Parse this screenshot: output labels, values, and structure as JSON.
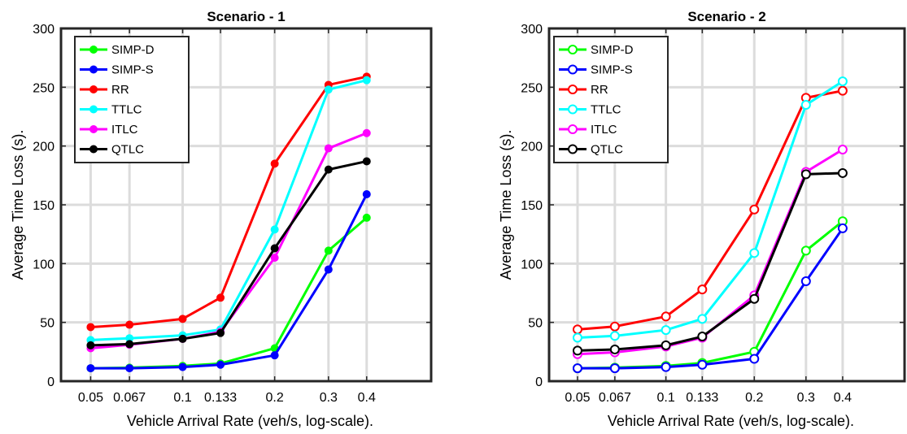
{
  "chart_data": [
    {
      "type": "line",
      "title": "Scenario - 1",
      "xlabel": "Vehicle Arrival Rate (veh/s, log-scale).",
      "ylabel": "Average Time Loss (s).",
      "x_scale": "log",
      "xlim": [
        0.04,
        0.65
      ],
      "ylim": [
        0,
        300
      ],
      "x": [
        0.05,
        0.067,
        0.1,
        0.133,
        0.2,
        0.3,
        0.4
      ],
      "x_tick_labels": [
        "0.05",
        "0.067",
        "0.1",
        "0.133",
        "0.2",
        "0.3",
        "0.4"
      ],
      "y_ticks": [
        0,
        50,
        100,
        150,
        200,
        250,
        300
      ],
      "marker": "filled-circle",
      "grid": true,
      "legend_position": "top-left",
      "series": [
        {
          "name": "SIMP-D",
          "color": "#00ff00",
          "values": [
            11,
            11.5,
            13,
            15,
            28,
            111,
            139
          ]
        },
        {
          "name": "SIMP-S",
          "color": "#0000ff",
          "values": [
            11,
            11,
            12,
            14,
            22,
            95,
            159
          ]
        },
        {
          "name": "RR",
          "color": "#ff0000",
          "values": [
            46,
            48,
            53,
            71,
            185,
            252,
            259
          ]
        },
        {
          "name": "TTLC",
          "color": "#00ffff",
          "values": [
            35,
            36.5,
            39,
            44,
            129,
            248,
            256
          ]
        },
        {
          "name": "ITLC",
          "color": "#ff00ff",
          "values": [
            28,
            31,
            36,
            42,
            105,
            198,
            211
          ]
        },
        {
          "name": "QTLC",
          "color": "#000000",
          "values": [
            30.5,
            31.5,
            36,
            41,
            113,
            180,
            187
          ]
        }
      ]
    },
    {
      "type": "line",
      "title": "Scenario - 2",
      "xlabel": "Vehicle Arrival Rate (veh/s, log-scale).",
      "ylabel": "Average Time Loss (s).",
      "x_scale": "log",
      "xlim": [
        0.04,
        0.65
      ],
      "ylim": [
        0,
        300
      ],
      "x": [
        0.05,
        0.067,
        0.1,
        0.133,
        0.2,
        0.3,
        0.4
      ],
      "x_tick_labels": [
        "0.05",
        "0.067",
        "0.1",
        "0.133",
        "0.2",
        "0.3",
        "0.4"
      ],
      "y_ticks": [
        0,
        50,
        100,
        150,
        200,
        250,
        300
      ],
      "marker": "open-circle",
      "grid": true,
      "legend_position": "top-left",
      "series": [
        {
          "name": "SIMP-D",
          "color": "#00ff00",
          "values": [
            11,
            11.5,
            13,
            15.5,
            25,
            111,
            136
          ]
        },
        {
          "name": "SIMP-S",
          "color": "#0000ff",
          "values": [
            11,
            11,
            12,
            14,
            19,
            85,
            130
          ]
        },
        {
          "name": "RR",
          "color": "#ff0000",
          "values": [
            44,
            46.5,
            55,
            78,
            146,
            241,
            247
          ]
        },
        {
          "name": "TTLC",
          "color": "#00ffff",
          "values": [
            37,
            38.5,
            43.5,
            53,
            109,
            235,
            255
          ]
        },
        {
          "name": "ITLC",
          "color": "#ff00ff",
          "values": [
            23,
            24.5,
            29.5,
            37,
            73,
            178,
            197
          ]
        },
        {
          "name": "QTLC",
          "color": "#000000",
          "values": [
            26,
            27,
            30.5,
            38,
            70,
            176,
            177
          ]
        }
      ]
    }
  ]
}
